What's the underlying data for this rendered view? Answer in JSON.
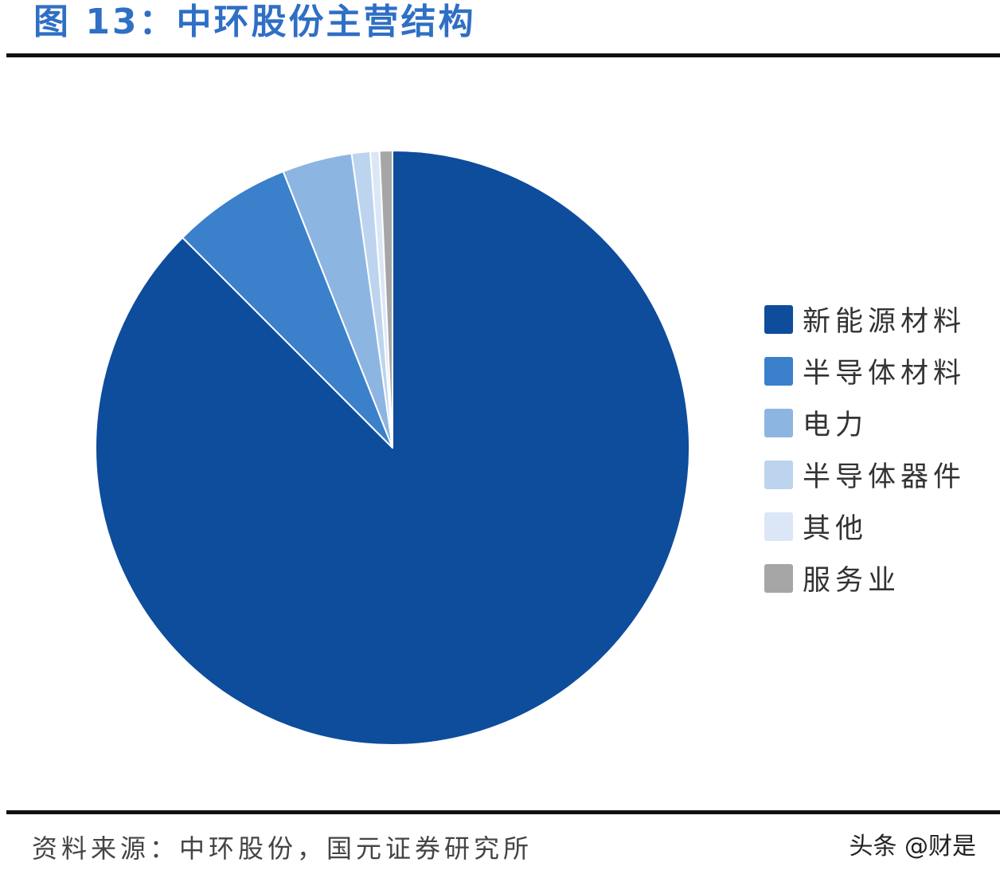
{
  "header": {
    "title": "图 13：中环股份主营结构"
  },
  "footer": {
    "source": "资料来源：中环股份，国元证券研究所",
    "watermark": "头条 @财是"
  },
  "chart_data": {
    "type": "pie",
    "title": "",
    "start_angle_deg": 0,
    "direction": "clockwise",
    "legend_position": "right",
    "slices": [
      {
        "label": "新能源材料",
        "value": 87.5,
        "color": "#0e4c9c"
      },
      {
        "label": "半导体材料",
        "value": 6.5,
        "color": "#3a80cb"
      },
      {
        "label": "电力",
        "value": 3.8,
        "color": "#8db5e1"
      },
      {
        "label": "半导体器件",
        "value": 1.0,
        "color": "#bcd4ee"
      },
      {
        "label": "其他",
        "value": 0.5,
        "color": "#dbe7f6"
      },
      {
        "label": "服务业",
        "value": 0.7,
        "color": "#a6a6a6"
      }
    ]
  }
}
